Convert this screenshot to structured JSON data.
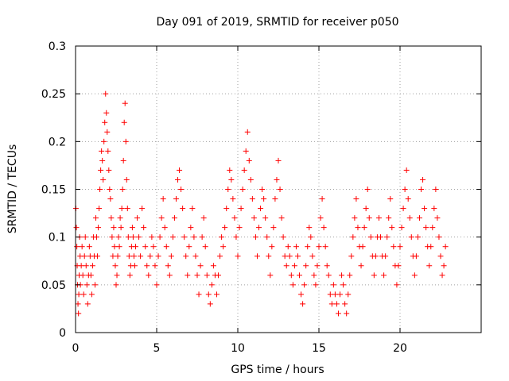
{
  "chart_data": {
    "type": "scatter",
    "title": "Day 091 of 2019, SRMTID for receiver p050",
    "xlabel": "GPS time / hours",
    "ylabel": "SRMTID / TECUs",
    "xlim": [
      0,
      25
    ],
    "ylim": [
      0,
      0.3
    ],
    "xticks": [
      0,
      5,
      10,
      15,
      20
    ],
    "xtick_labels": [
      "0",
      "5",
      "10",
      "15",
      "20"
    ],
    "yticks": [
      0,
      0.05,
      0.1,
      0.15,
      0.2,
      0.25,
      0.3
    ],
    "ytick_labels": [
      "0",
      "0.05",
      "0.1",
      "0.15",
      "0.2",
      "0.25",
      "0.3"
    ],
    "grid": true,
    "marker": "plus",
    "point_color": "#ff0000",
    "series": [
      {
        "name": "SRMTID p050",
        "points": [
          [
            0.02,
            0.13
          ],
          [
            0.05,
            0.11
          ],
          [
            0.08,
            0.09
          ],
          [
            0.1,
            0.07
          ],
          [
            0.12,
            0.05
          ],
          [
            0.15,
            0.03
          ],
          [
            0.18,
            0.02
          ],
          [
            0.2,
            0.04
          ],
          [
            0.22,
            0.06
          ],
          [
            0.25,
            0.1
          ],
          [
            0.28,
            0.08
          ],
          [
            0.3,
            0.05
          ],
          [
            0.35,
            0.07
          ],
          [
            0.4,
            0.09
          ],
          [
            0.45,
            0.06
          ],
          [
            0.5,
            0.04
          ],
          [
            0.55,
            0.08
          ],
          [
            0.6,
            0.1
          ],
          [
            0.65,
            0.07
          ],
          [
            0.7,
            0.05
          ],
          [
            0.75,
            0.03
          ],
          [
            0.8,
            0.06
          ],
          [
            0.85,
            0.09
          ],
          [
            0.9,
            0.08
          ],
          [
            0.95,
            0.06
          ],
          [
            1.0,
            0.04
          ],
          [
            1.05,
            0.07
          ],
          [
            1.1,
            0.1
          ],
          [
            1.15,
            0.08
          ],
          [
            1.2,
            0.05
          ],
          [
            1.25,
            0.12
          ],
          [
            1.3,
            0.1
          ],
          [
            1.35,
            0.08
          ],
          [
            1.4,
            0.11
          ],
          [
            1.45,
            0.13
          ],
          [
            1.5,
            0.15
          ],
          [
            1.55,
            0.17
          ],
          [
            1.6,
            0.19
          ],
          [
            1.65,
            0.18
          ],
          [
            1.7,
            0.16
          ],
          [
            1.75,
            0.2
          ],
          [
            1.8,
            0.22
          ],
          [
            1.85,
            0.25
          ],
          [
            1.9,
            0.23
          ],
          [
            1.95,
            0.21
          ],
          [
            2.0,
            0.19
          ],
          [
            2.05,
            0.17
          ],
          [
            2.1,
            0.15
          ],
          [
            2.15,
            0.14
          ],
          [
            2.2,
            0.12
          ],
          [
            2.25,
            0.1
          ],
          [
            2.3,
            0.08
          ],
          [
            2.35,
            0.11
          ],
          [
            2.4,
            0.09
          ],
          [
            2.45,
            0.07
          ],
          [
            2.5,
            0.05
          ],
          [
            2.55,
            0.06
          ],
          [
            2.6,
            0.08
          ],
          [
            2.65,
            0.1
          ],
          [
            2.7,
            0.09
          ],
          [
            2.75,
            0.12
          ],
          [
            2.8,
            0.11
          ],
          [
            2.85,
            0.13
          ],
          [
            2.9,
            0.15
          ],
          [
            2.95,
            0.18
          ],
          [
            3.0,
            0.22
          ],
          [
            3.05,
            0.24
          ],
          [
            3.1,
            0.2
          ],
          [
            3.15,
            0.16
          ],
          [
            3.2,
            0.13
          ],
          [
            3.25,
            0.1
          ],
          [
            3.3,
            0.08
          ],
          [
            3.35,
            0.06
          ],
          [
            3.4,
            0.07
          ],
          [
            3.45,
            0.09
          ],
          [
            3.5,
            0.11
          ],
          [
            3.55,
            0.1
          ],
          [
            3.6,
            0.08
          ],
          [
            3.65,
            0.07
          ],
          [
            3.7,
            0.09
          ],
          [
            3.8,
            0.12
          ],
          [
            3.9,
            0.1
          ],
          [
            4.0,
            0.08
          ],
          [
            4.1,
            0.13
          ],
          [
            4.2,
            0.11
          ],
          [
            4.3,
            0.09
          ],
          [
            4.4,
            0.07
          ],
          [
            4.5,
            0.06
          ],
          [
            4.6,
            0.08
          ],
          [
            4.7,
            0.1
          ],
          [
            4.8,
            0.09
          ],
          [
            4.9,
            0.07
          ],
          [
            5.0,
            0.05
          ],
          [
            5.1,
            0.08
          ],
          [
            5.2,
            0.1
          ],
          [
            5.3,
            0.12
          ],
          [
            5.4,
            0.14
          ],
          [
            5.5,
            0.11
          ],
          [
            5.6,
            0.09
          ],
          [
            5.7,
            0.07
          ],
          [
            5.8,
            0.06
          ],
          [
            5.9,
            0.08
          ],
          [
            6.0,
            0.1
          ],
          [
            6.1,
            0.12
          ],
          [
            6.2,
            0.14
          ],
          [
            6.3,
            0.16
          ],
          [
            6.4,
            0.17
          ],
          [
            6.5,
            0.15
          ],
          [
            6.6,
            0.13
          ],
          [
            6.7,
            0.1
          ],
          [
            6.8,
            0.08
          ],
          [
            6.9,
            0.06
          ],
          [
            7.0,
            0.09
          ],
          [
            7.1,
            0.11
          ],
          [
            7.2,
            0.13
          ],
          [
            7.3,
            0.1
          ],
          [
            7.4,
            0.08
          ],
          [
            7.5,
            0.06
          ],
          [
            7.6,
            0.04
          ],
          [
            7.7,
            0.07
          ],
          [
            7.8,
            0.1
          ],
          [
            7.9,
            0.12
          ],
          [
            8.0,
            0.09
          ],
          [
            8.1,
            0.06
          ],
          [
            8.2,
            0.04
          ],
          [
            8.3,
            0.03
          ],
          [
            8.4,
            0.05
          ],
          [
            8.5,
            0.07
          ],
          [
            8.6,
            0.06
          ],
          [
            8.7,
            0.04
          ],
          [
            8.8,
            0.06
          ],
          [
            8.9,
            0.08
          ],
          [
            9.0,
            0.1
          ],
          [
            9.1,
            0.09
          ],
          [
            9.2,
            0.11
          ],
          [
            9.3,
            0.13
          ],
          [
            9.4,
            0.15
          ],
          [
            9.5,
            0.17
          ],
          [
            9.6,
            0.16
          ],
          [
            9.7,
            0.14
          ],
          [
            9.8,
            0.12
          ],
          [
            9.9,
            0.1
          ],
          [
            10.0,
            0.08
          ],
          [
            10.1,
            0.11
          ],
          [
            10.2,
            0.13
          ],
          [
            10.3,
            0.15
          ],
          [
            10.4,
            0.17
          ],
          [
            10.5,
            0.19
          ],
          [
            10.6,
            0.21
          ],
          [
            10.7,
            0.18
          ],
          [
            10.8,
            0.16
          ],
          [
            10.9,
            0.14
          ],
          [
            11.0,
            0.12
          ],
          [
            11.1,
            0.1
          ],
          [
            11.2,
            0.08
          ],
          [
            11.3,
            0.11
          ],
          [
            11.4,
            0.13
          ],
          [
            11.5,
            0.15
          ],
          [
            11.6,
            0.14
          ],
          [
            11.7,
            0.12
          ],
          [
            11.8,
            0.1
          ],
          [
            11.9,
            0.08
          ],
          [
            12.0,
            0.06
          ],
          [
            12.1,
            0.09
          ],
          [
            12.2,
            0.11
          ],
          [
            12.3,
            0.14
          ],
          [
            12.4,
            0.16
          ],
          [
            12.5,
            0.18
          ],
          [
            12.6,
            0.15
          ],
          [
            12.7,
            0.12
          ],
          [
            12.8,
            0.1
          ],
          [
            12.9,
            0.08
          ],
          [
            13.0,
            0.07
          ],
          [
            13.1,
            0.09
          ],
          [
            13.2,
            0.08
          ],
          [
            13.3,
            0.06
          ],
          [
            13.4,
            0.05
          ],
          [
            13.5,
            0.07
          ],
          [
            13.6,
            0.09
          ],
          [
            13.7,
            0.08
          ],
          [
            13.8,
            0.06
          ],
          [
            13.9,
            0.04
          ],
          [
            14.0,
            0.03
          ],
          [
            14.1,
            0.05
          ],
          [
            14.2,
            0.07
          ],
          [
            14.3,
            0.09
          ],
          [
            14.4,
            0.11
          ],
          [
            14.5,
            0.1
          ],
          [
            14.6,
            0.08
          ],
          [
            14.7,
            0.06
          ],
          [
            14.8,
            0.05
          ],
          [
            14.9,
            0.07
          ],
          [
            15.0,
            0.09
          ],
          [
            15.1,
            0.12
          ],
          [
            15.2,
            0.14
          ],
          [
            15.3,
            0.11
          ],
          [
            15.4,
            0.09
          ],
          [
            15.5,
            0.07
          ],
          [
            15.6,
            0.06
          ],
          [
            15.7,
            0.04
          ],
          [
            15.8,
            0.03
          ],
          [
            15.9,
            0.05
          ],
          [
            16.0,
            0.04
          ],
          [
            16.1,
            0.03
          ],
          [
            16.2,
            0.02
          ],
          [
            16.3,
            0.04
          ],
          [
            16.4,
            0.06
          ],
          [
            16.5,
            0.05
          ],
          [
            16.6,
            0.03
          ],
          [
            16.7,
            0.02
          ],
          [
            16.8,
            0.04
          ],
          [
            16.9,
            0.06
          ],
          [
            17.0,
            0.08
          ],
          [
            17.1,
            0.1
          ],
          [
            17.2,
            0.12
          ],
          [
            17.3,
            0.14
          ],
          [
            17.4,
            0.11
          ],
          [
            17.5,
            0.09
          ],
          [
            17.6,
            0.07
          ],
          [
            17.7,
            0.09
          ],
          [
            17.8,
            0.11
          ],
          [
            17.9,
            0.13
          ],
          [
            18.0,
            0.15
          ],
          [
            18.1,
            0.12
          ],
          [
            18.2,
            0.1
          ],
          [
            18.3,
            0.08
          ],
          [
            18.4,
            0.06
          ],
          [
            18.5,
            0.08
          ],
          [
            18.6,
            0.1
          ],
          [
            18.7,
            0.12
          ],
          [
            18.8,
            0.1
          ],
          [
            18.9,
            0.08
          ],
          [
            19.0,
            0.06
          ],
          [
            19.1,
            0.08
          ],
          [
            19.2,
            0.1
          ],
          [
            19.3,
            0.12
          ],
          [
            19.4,
            0.14
          ],
          [
            19.5,
            0.11
          ],
          [
            19.6,
            0.09
          ],
          [
            19.7,
            0.07
          ],
          [
            19.8,
            0.05
          ],
          [
            19.9,
            0.07
          ],
          [
            20.0,
            0.09
          ],
          [
            20.1,
            0.11
          ],
          [
            20.2,
            0.13
          ],
          [
            20.3,
            0.15
          ],
          [
            20.4,
            0.17
          ],
          [
            20.5,
            0.14
          ],
          [
            20.6,
            0.12
          ],
          [
            20.7,
            0.1
          ],
          [
            20.8,
            0.08
          ],
          [
            20.9,
            0.06
          ],
          [
            21.0,
            0.08
          ],
          [
            21.1,
            0.1
          ],
          [
            21.2,
            0.12
          ],
          [
            21.3,
            0.15
          ],
          [
            21.4,
            0.16
          ],
          [
            21.5,
            0.13
          ],
          [
            21.6,
            0.11
          ],
          [
            21.7,
            0.09
          ],
          [
            21.8,
            0.07
          ],
          [
            21.9,
            0.09
          ],
          [
            22.0,
            0.11
          ],
          [
            22.1,
            0.13
          ],
          [
            22.2,
            0.15
          ],
          [
            22.3,
            0.12
          ],
          [
            22.4,
            0.1
          ],
          [
            22.5,
            0.08
          ],
          [
            22.6,
            0.06
          ],
          [
            22.7,
            0.07
          ],
          [
            22.8,
            0.09
          ]
        ]
      }
    ]
  }
}
